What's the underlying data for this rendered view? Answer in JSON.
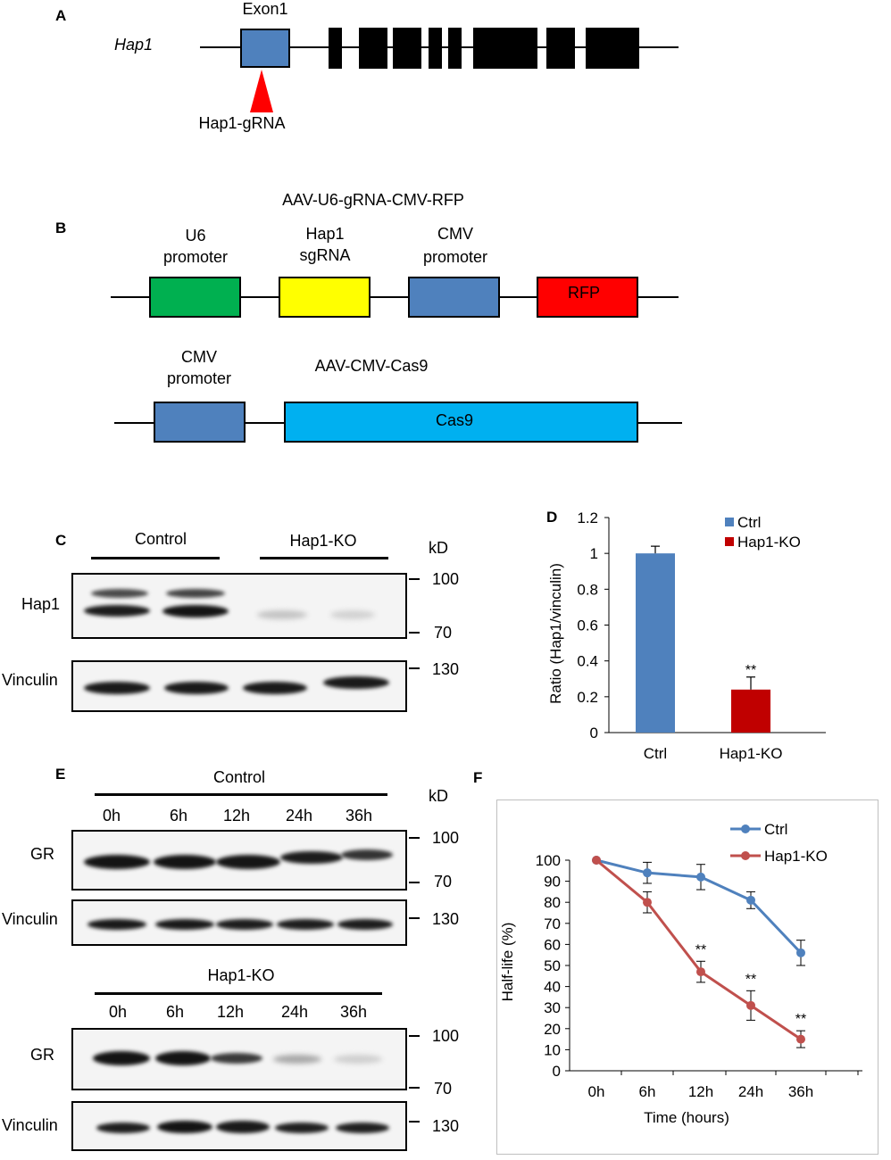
{
  "panelA": {
    "letter": "A",
    "gene": "Hap1",
    "exon_label": "Exon1",
    "grna_label": "Hap1-gRNA"
  },
  "panelB": {
    "letter": "B",
    "construct1_title": "AAV-U6-gRNA-CMV-RFP",
    "u6_line1": "U6",
    "u6_line2": "promoter",
    "sgrna_line1": "Hap1",
    "sgrna_line2": "sgRNA",
    "cmv_line1": "CMV",
    "cmv_line2": "promoter",
    "rfp": "RFP",
    "construct2_title": "AAV-CMV-Cas9",
    "cmv2_line1": "CMV",
    "cmv2_line2": "promoter",
    "cas9": "Cas9",
    "colors": {
      "u6": "#00b050",
      "sgrna": "#ffff00",
      "cmv": "#4f81bd",
      "rfp": "#ff0000",
      "cas9": "#00b0f0"
    }
  },
  "panelC": {
    "letter": "C",
    "control": "Control",
    "ko": "Hap1-KO",
    "kd": "kD",
    "row1": "Hap1",
    "row2": "Vinculin",
    "mw100": "100",
    "mw70": "70",
    "mw130": "130"
  },
  "panelD": {
    "letter": "D",
    "star": "**",
    "chart_data": {
      "type": "bar",
      "categories": [
        "Ctrl",
        "Hap1-KO"
      ],
      "values": [
        1.0,
        0.24
      ],
      "errors": [
        0.04,
        0.07
      ],
      "colors": [
        "#4f81bd",
        "#c00000"
      ],
      "legend": [
        "Ctrl",
        "Hap1-KO"
      ],
      "ylabel": "Ratio (Hap1/vinculin)",
      "ylim": [
        0,
        1.2
      ],
      "yticks": [
        "0",
        "0.2",
        "0.4",
        "0.6",
        "0.8",
        "1",
        "1.2"
      ],
      "grid": false,
      "legend_position": "top-right"
    }
  },
  "panelE": {
    "letter": "E",
    "control": "Control",
    "ko": "Hap1-KO",
    "kd": "kD",
    "times": [
      "0h",
      "6h",
      "12h",
      "24h",
      "36h"
    ],
    "row_gr": "GR",
    "row_vinc": "Vinculin",
    "mw100": "100",
    "mw70": "70",
    "mw130": "130"
  },
  "panelF": {
    "letter": "F",
    "stars": [
      "**",
      "**",
      "**"
    ],
    "chart_data": {
      "type": "line",
      "x": [
        "0h",
        "6h",
        "12h",
        "24h",
        "36h"
      ],
      "series": [
        {
          "name": "Ctrl",
          "values": [
            100,
            94,
            92,
            81,
            56
          ],
          "errors": [
            0,
            5,
            6,
            4,
            6
          ],
          "color": "#4f81bd"
        },
        {
          "name": "Hap1-KO",
          "values": [
            100,
            80,
            47,
            31,
            15
          ],
          "errors": [
            0,
            5,
            5,
            7,
            4
          ],
          "color": "#c0504d"
        }
      ],
      "xlabel": "Time (hours)",
      "ylabel": "Half-life (%)",
      "ylim": [
        0,
        100
      ],
      "yticks": [
        "0",
        "10",
        "20",
        "30",
        "40",
        "50",
        "60",
        "70",
        "80",
        "90",
        "100"
      ],
      "grid": false,
      "legend_position": "top-right"
    }
  }
}
